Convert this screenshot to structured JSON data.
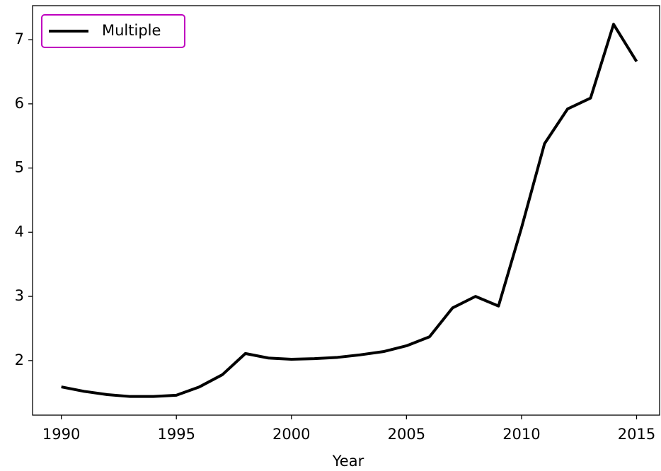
{
  "chart_data": {
    "type": "line",
    "x_label": "Year",
    "x": [
      1990,
      1991,
      1992,
      1993,
      1994,
      1995,
      1996,
      1997,
      1998,
      1999,
      2000,
      2001,
      2002,
      2003,
      2004,
      2005,
      2006,
      2007,
      2008,
      2009,
      2010,
      2011,
      2012,
      2013,
      2014,
      2015
    ],
    "series": [
      {
        "name": "Multiple",
        "color": "#000000",
        "values": [
          1.59,
          1.52,
          1.47,
          1.44,
          1.44,
          1.46,
          1.59,
          1.78,
          2.11,
          2.04,
          2.02,
          2.03,
          2.05,
          2.09,
          2.14,
          2.23,
          2.37,
          2.82,
          3.0,
          2.85,
          4.07,
          5.38,
          5.92,
          6.09,
          7.24,
          6.66
        ]
      }
    ],
    "xlim": [
      1988.75,
      2016
    ],
    "ylim": [
      1.15,
      7.53
    ],
    "xticks": [
      1990,
      1995,
      2000,
      2005,
      2010,
      2015
    ],
    "yticks": [
      2,
      3,
      4,
      5,
      6,
      7
    ],
    "grid": false,
    "legend_position": "upper-left",
    "legend_border_color": "#bf00bf"
  }
}
